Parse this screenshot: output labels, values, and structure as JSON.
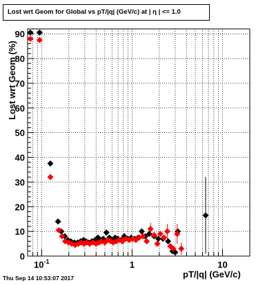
{
  "chart_data": {
    "type": "scatter",
    "title": "Lost wrt Geom for Global vs pT/|q| (GeV/c) at |  η | <= 1.0",
    "xlabel": "pT/|q| (GeV/c)",
    "ylabel": "Lost wrt Geom (%)",
    "x_scale": "log",
    "xlim": [
      0.07,
      20
    ],
    "ylim": [
      0,
      92
    ],
    "x_tick_labels": [
      {
        "value": 0.1,
        "label": "10",
        "sup": "-1"
      },
      {
        "value": 1,
        "label": "1",
        "sup": ""
      },
      {
        "value": 10,
        "label": "10",
        "sup": ""
      }
    ],
    "y_ticks": [
      0,
      10,
      20,
      30,
      40,
      50,
      60,
      70,
      80,
      90
    ],
    "grid": true,
    "series": [
      {
        "color": "#000000",
        "points": [
          {
            "x": 0.075,
            "y": 90.5
          },
          {
            "x": 0.095,
            "y": 90.5
          },
          {
            "x": 0.125,
            "y": 37.5
          },
          {
            "x": 0.152,
            "y": 14.0
          },
          {
            "x": 0.165,
            "y": 10.0
          },
          {
            "x": 0.18,
            "y": 8.0
          },
          {
            "x": 0.195,
            "y": 6.5
          },
          {
            "x": 0.21,
            "y": 6.0
          },
          {
            "x": 0.23,
            "y": 5.5
          },
          {
            "x": 0.25,
            "y": 5.5
          },
          {
            "x": 0.27,
            "y": 6.0
          },
          {
            "x": 0.29,
            "y": 6.5
          },
          {
            "x": 0.31,
            "y": 6.0
          },
          {
            "x": 0.33,
            "y": 5.5
          },
          {
            "x": 0.36,
            "y": 6.0
          },
          {
            "x": 0.39,
            "y": 6.5
          },
          {
            "x": 0.42,
            "y": 7.5
          },
          {
            "x": 0.45,
            "y": 6.5
          },
          {
            "x": 0.48,
            "y": 7.0
          },
          {
            "x": 0.52,
            "y": 9.5
          },
          {
            "x": 0.56,
            "y": 7.5
          },
          {
            "x": 0.6,
            "y": 6.5
          },
          {
            "x": 0.65,
            "y": 7.5
          },
          {
            "x": 0.7,
            "y": 7.0
          },
          {
            "x": 0.76,
            "y": 6.5
          },
          {
            "x": 0.82,
            "y": 8.0
          },
          {
            "x": 0.9,
            "y": 7.0
          },
          {
            "x": 0.98,
            "y": 7.5
          },
          {
            "x": 1.07,
            "y": 7.0
          },
          {
            "x": 1.17,
            "y": 7.5
          },
          {
            "x": 1.28,
            "y": 10.0
          },
          {
            "x": 1.4,
            "y": 8.0
          },
          {
            "x": 1.55,
            "y": 9.0
          },
          {
            "x": 1.75,
            "y": 8.0
          },
          {
            "x": 1.95,
            "y": 7.0
          },
          {
            "x": 2.2,
            "y": 7.0
          },
          {
            "x": 2.5,
            "y": 6.0
          },
          {
            "x": 2.8,
            "y": 2.0
          },
          {
            "x": 3.0,
            "y": 1.5
          },
          {
            "x": 3.2,
            "y": 10.0
          },
          {
            "x": 6.5,
            "y": 16.5,
            "err": 15.5
          }
        ]
      },
      {
        "color": "#ff0000",
        "points": [
          {
            "x": 0.075,
            "y": 88.0
          },
          {
            "x": 0.095,
            "y": 87.5
          },
          {
            "x": 0.125,
            "y": 32.0
          },
          {
            "x": 0.155,
            "y": 10.5
          },
          {
            "x": 0.168,
            "y": 8.0
          },
          {
            "x": 0.182,
            "y": 6.0
          },
          {
            "x": 0.198,
            "y": 5.5
          },
          {
            "x": 0.215,
            "y": 5.0
          },
          {
            "x": 0.235,
            "y": 4.5
          },
          {
            "x": 0.255,
            "y": 5.0
          },
          {
            "x": 0.275,
            "y": 5.5
          },
          {
            "x": 0.295,
            "y": 5.0
          },
          {
            "x": 0.315,
            "y": 5.5
          },
          {
            "x": 0.34,
            "y": 5.0
          },
          {
            "x": 0.37,
            "y": 5.5
          },
          {
            "x": 0.4,
            "y": 5.0
          },
          {
            "x": 0.43,
            "y": 5.5
          },
          {
            "x": 0.46,
            "y": 6.0
          },
          {
            "x": 0.5,
            "y": 5.5
          },
          {
            "x": 0.54,
            "y": 6.5
          },
          {
            "x": 0.58,
            "y": 6.0
          },
          {
            "x": 0.62,
            "y": 5.5
          },
          {
            "x": 0.67,
            "y": 6.0
          },
          {
            "x": 0.72,
            "y": 6.5
          },
          {
            "x": 0.78,
            "y": 6.0
          },
          {
            "x": 0.85,
            "y": 7.0
          },
          {
            "x": 0.93,
            "y": 6.5
          },
          {
            "x": 1.01,
            "y": 7.0
          },
          {
            "x": 1.1,
            "y": 6.5
          },
          {
            "x": 1.2,
            "y": 7.5
          },
          {
            "x": 1.32,
            "y": 8.0
          },
          {
            "x": 1.45,
            "y": 6.0
          },
          {
            "x": 1.6,
            "y": 11.0,
            "err": 2.5
          },
          {
            "x": 1.75,
            "y": 8.5
          },
          {
            "x": 1.9,
            "y": 5.0
          },
          {
            "x": 2.05,
            "y": 9.0
          },
          {
            "x": 2.25,
            "y": 7.5
          },
          {
            "x": 2.45,
            "y": 10.0,
            "err": 3.0
          },
          {
            "x": 2.65,
            "y": 4.0
          },
          {
            "x": 2.85,
            "y": 3.0
          },
          {
            "x": 3.15,
            "y": 9.0,
            "err": 4.0
          },
          {
            "x": 3.5,
            "y": 3.0,
            "err": 2.5
          }
        ]
      }
    ]
  },
  "page": {
    "timestamp": "Thu Sep 14 10:53:07 2017"
  }
}
